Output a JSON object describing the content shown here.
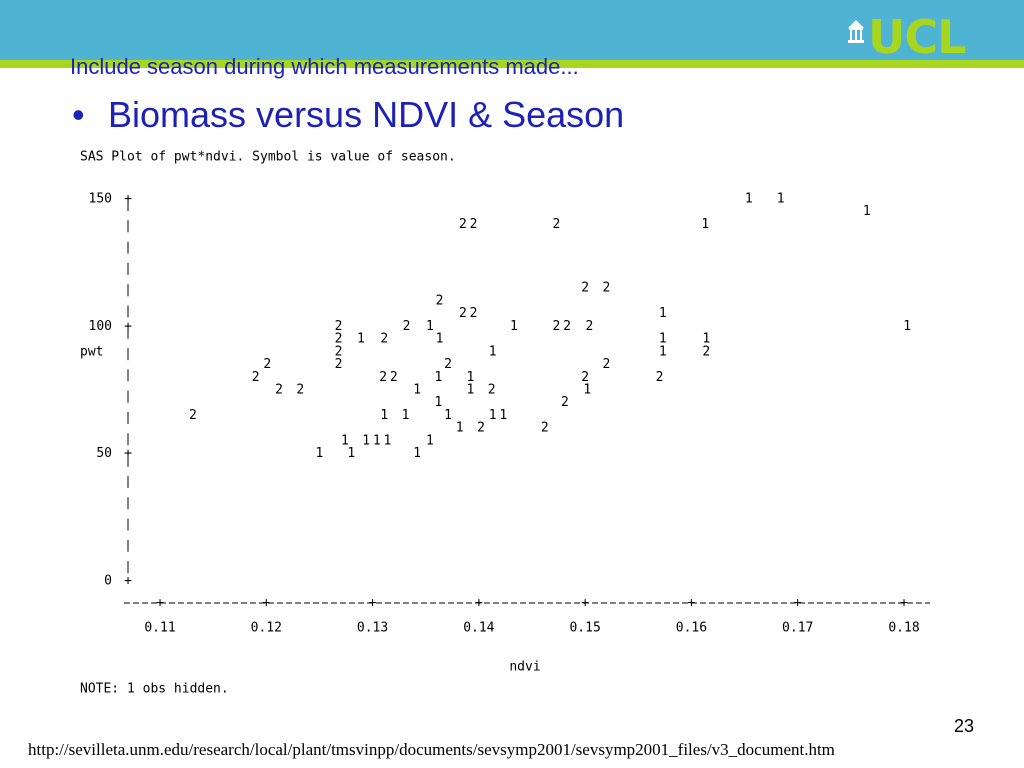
{
  "header": {
    "logo_text": "UCL"
  },
  "slide": {
    "subtitle": "Include season during which measurements made...",
    "bullet": "Biomass versus NDVI & Season",
    "page_number": "23",
    "footer_url": "http://sevilleta.unm.edu/research/local/plant/tmsvinpp/documents/sevsymp2001/sevsymp2001_files/v3_document.htm"
  },
  "colors": {
    "header_band": "#4fb3d4",
    "accent_green": "#a8d61e",
    "title_blue": "#1c22b8"
  },
  "chart_data": {
    "type": "scatter",
    "title": "SAS Plot of pwt*ndvi.  Symbol is value of season.",
    "xlabel": "ndvi",
    "ylabel": "pwt",
    "x_ticks": [
      "0.11",
      "0.12",
      "0.13",
      "0.14",
      "0.15",
      "0.16",
      "0.17",
      "0.18"
    ],
    "y_ticks": [
      "150",
      "100",
      "50",
      "0"
    ],
    "xlim": [
      0.11,
      0.18
    ],
    "ylim": [
      0,
      150
    ],
    "note": "NOTE: 1 obs hidden.",
    "points": [
      {
        "x": 0.1654,
        "y": 150,
        "label": "1"
      },
      {
        "x": 0.1684,
        "y": 150,
        "label": "1"
      },
      {
        "x": 0.1765,
        "y": 145,
        "label": "1"
      },
      {
        "x": 0.1385,
        "y": 140,
        "label": "2"
      },
      {
        "x": 0.1395,
        "y": 140,
        "label": "2"
      },
      {
        "x": 0.1473,
        "y": 140,
        "label": "2"
      },
      {
        "x": 0.1613,
        "y": 140,
        "label": "1"
      },
      {
        "x": 0.15,
        "y": 115,
        "label": "2"
      },
      {
        "x": 0.152,
        "y": 115,
        "label": "2"
      },
      {
        "x": 0.1363,
        "y": 110,
        "label": "2"
      },
      {
        "x": 0.1385,
        "y": 105,
        "label": "2"
      },
      {
        "x": 0.1395,
        "y": 105,
        "label": "2"
      },
      {
        "x": 0.1573,
        "y": 105,
        "label": "1"
      },
      {
        "x": 0.1268,
        "y": 100,
        "label": "2"
      },
      {
        "x": 0.1332,
        "y": 100,
        "label": "2"
      },
      {
        "x": 0.1354,
        "y": 100,
        "label": "1"
      },
      {
        "x": 0.1433,
        "y": 100,
        "label": "1"
      },
      {
        "x": 0.1473,
        "y": 100,
        "label": "2"
      },
      {
        "x": 0.1483,
        "y": 100,
        "label": "2"
      },
      {
        "x": 0.1504,
        "y": 100,
        "label": "2"
      },
      {
        "x": 0.1803,
        "y": 100,
        "label": "1"
      },
      {
        "x": 0.1268,
        "y": 95,
        "label": "2"
      },
      {
        "x": 0.1289,
        "y": 95,
        "label": "1"
      },
      {
        "x": 0.1311,
        "y": 95,
        "label": "2"
      },
      {
        "x": 0.1363,
        "y": 95,
        "label": "1"
      },
      {
        "x": 0.1573,
        "y": 95,
        "label": "1"
      },
      {
        "x": 0.1614,
        "y": 95,
        "label": "1"
      },
      {
        "x": 0.1268,
        "y": 90,
        "label": "2"
      },
      {
        "x": 0.1413,
        "y": 90,
        "label": "1"
      },
      {
        "x": 0.1573,
        "y": 90,
        "label": "1"
      },
      {
        "x": 0.1614,
        "y": 90,
        "label": "2"
      },
      {
        "x": 0.1201,
        "y": 85,
        "label": "2"
      },
      {
        "x": 0.1268,
        "y": 85,
        "label": "2"
      },
      {
        "x": 0.1371,
        "y": 85,
        "label": "2"
      },
      {
        "x": 0.152,
        "y": 85,
        "label": "2"
      },
      {
        "x": 0.119,
        "y": 80,
        "label": "2"
      },
      {
        "x": 0.131,
        "y": 80,
        "label": "2"
      },
      {
        "x": 0.132,
        "y": 80,
        "label": "2"
      },
      {
        "x": 0.1362,
        "y": 80,
        "label": "1"
      },
      {
        "x": 0.1392,
        "y": 80,
        "label": "1"
      },
      {
        "x": 0.15,
        "y": 80,
        "label": "2"
      },
      {
        "x": 0.157,
        "y": 80,
        "label": "2"
      },
      {
        "x": 0.1212,
        "y": 75,
        "label": "2"
      },
      {
        "x": 0.1232,
        "y": 75,
        "label": "2"
      },
      {
        "x": 0.1342,
        "y": 75,
        "label": "1"
      },
      {
        "x": 0.1392,
        "y": 75,
        "label": "1"
      },
      {
        "x": 0.1412,
        "y": 75,
        "label": "2"
      },
      {
        "x": 0.1502,
        "y": 75,
        "label": "1"
      },
      {
        "x": 0.1362,
        "y": 70,
        "label": "1"
      },
      {
        "x": 0.1481,
        "y": 70,
        "label": "2"
      },
      {
        "x": 0.1131,
        "y": 65,
        "label": "2"
      },
      {
        "x": 0.1311,
        "y": 65,
        "label": "1"
      },
      {
        "x": 0.1331,
        "y": 65,
        "label": "1"
      },
      {
        "x": 0.1371,
        "y": 65,
        "label": "1"
      },
      {
        "x": 0.1413,
        "y": 65,
        "label": "1"
      },
      {
        "x": 0.1423,
        "y": 65,
        "label": "1"
      },
      {
        "x": 0.1382,
        "y": 60,
        "label": "1"
      },
      {
        "x": 0.1402,
        "y": 60,
        "label": "2"
      },
      {
        "x": 0.1462,
        "y": 60,
        "label": "2"
      },
      {
        "x": 0.1274,
        "y": 55,
        "label": "1"
      },
      {
        "x": 0.1294,
        "y": 55,
        "label": "1"
      },
      {
        "x": 0.1304,
        "y": 55,
        "label": "1"
      },
      {
        "x": 0.1314,
        "y": 55,
        "label": "1"
      },
      {
        "x": 0.1354,
        "y": 55,
        "label": "1"
      },
      {
        "x": 0.125,
        "y": 50,
        "label": "1"
      },
      {
        "x": 0.128,
        "y": 50,
        "label": "1"
      },
      {
        "x": 0.1342,
        "y": 50,
        "label": "1"
      }
    ]
  }
}
